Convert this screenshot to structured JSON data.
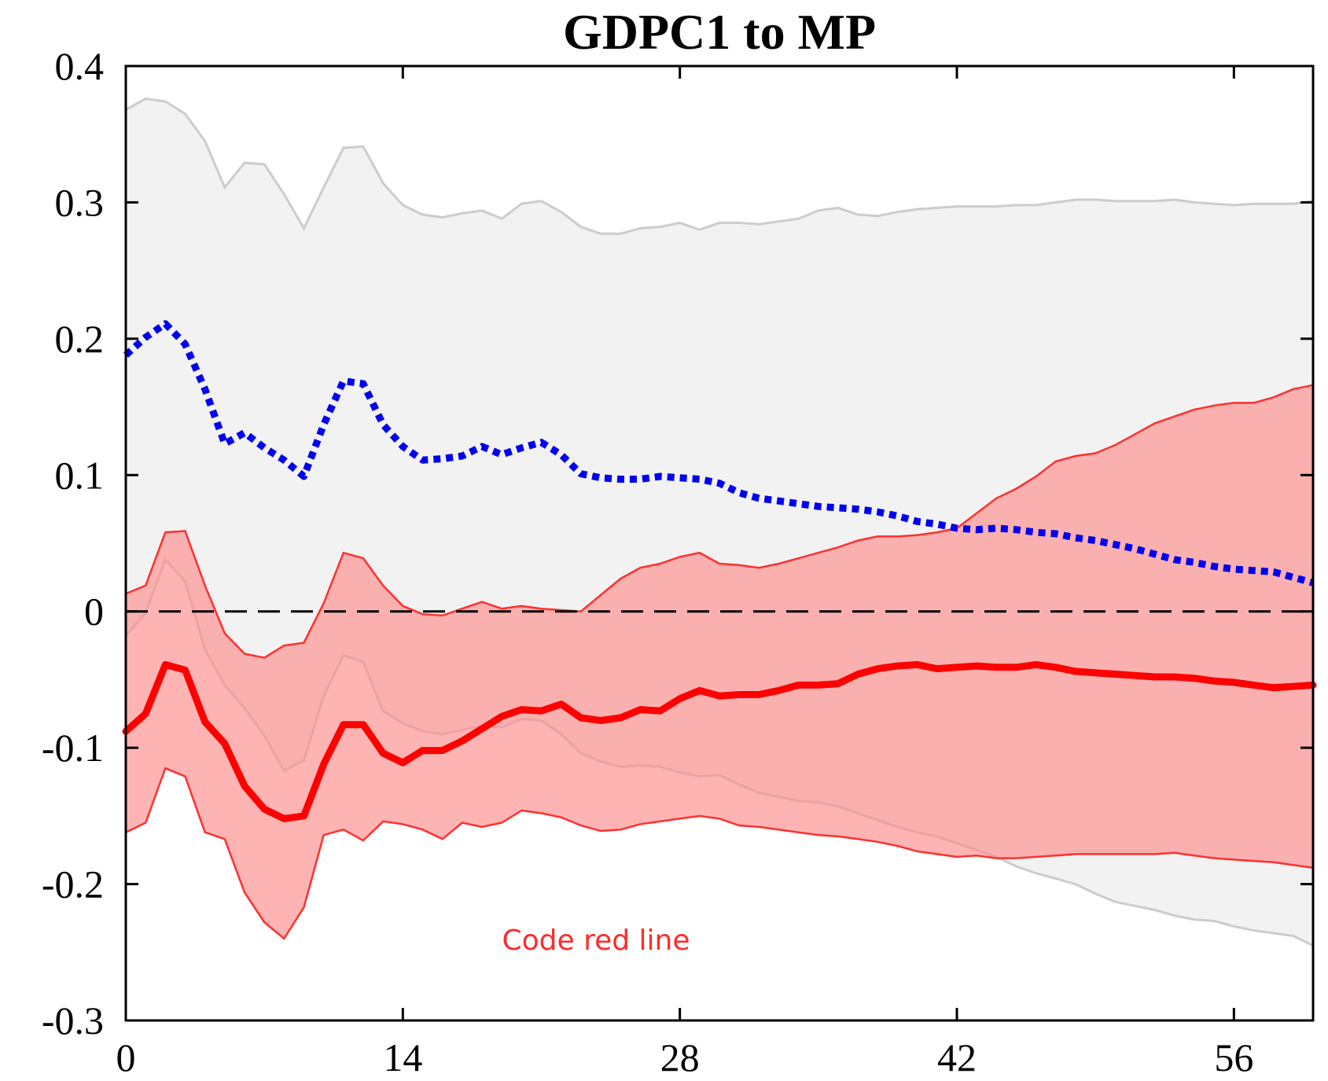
{
  "chart_data": {
    "type": "line",
    "title": "GDPC1 to MP",
    "xlabel": "",
    "ylabel": "",
    "xlim": [
      0,
      60
    ],
    "ylim": [
      -0.3,
      0.4
    ],
    "x_ticks": [
      0,
      14,
      28,
      42,
      56
    ],
    "x_tick_labels": [
      "0",
      "14",
      "28",
      "42",
      "56"
    ],
    "y_ticks": [
      0.4,
      0.3,
      0.2,
      0.1,
      0,
      -0.1,
      -0.2,
      -0.3
    ],
    "y_tick_labels": [
      "0.4",
      "0.3",
      "0.2",
      "0.1",
      "0",
      "-0.1",
      "-0.2",
      "-0.3"
    ],
    "annotation": "Code red line",
    "zero_line": true,
    "x": [
      0,
      1,
      2,
      3,
      4,
      5,
      6,
      7,
      8,
      9,
      10,
      11,
      12,
      13,
      14,
      15,
      16,
      17,
      18,
      19,
      20,
      21,
      22,
      23,
      24,
      25,
      26,
      27,
      28,
      29,
      30,
      31,
      32,
      33,
      34,
      35,
      36,
      37,
      38,
      39,
      40,
      41,
      42,
      43,
      44,
      45,
      46,
      47,
      48,
      49,
      50,
      51,
      52,
      53,
      54,
      55,
      56,
      57,
      58,
      59,
      60
    ],
    "colors": {
      "gray_band_fill": "#f2f2f2",
      "gray_band_edge": "#cccccc",
      "red_band_fill": "#ff8c8c",
      "red_band_edge": "#ff3030",
      "red_line": "#ff0000",
      "blue_line": "#0000ee",
      "zero_line": "#000000"
    },
    "gray_band_upper": [
      0.368,
      0.376,
      0.374,
      0.365,
      0.345,
      0.311,
      0.329,
      0.328,
      0.306,
      0.281,
      0.311,
      0.34,
      0.341,
      0.314,
      0.298,
      0.291,
      0.289,
      0.292,
      0.294,
      0.288,
      0.299,
      0.301,
      0.293,
      0.282,
      0.277,
      0.277,
      0.281,
      0.282,
      0.285,
      0.28,
      0.285,
      0.285,
      0.284,
      0.286,
      0.288,
      0.294,
      0.296,
      0.291,
      0.29,
      0.293,
      0.295,
      0.296,
      0.297,
      0.297,
      0.297,
      0.298,
      0.298,
      0.3,
      0.302,
      0.302,
      0.301,
      0.301,
      0.301,
      0.302,
      0.3,
      0.299,
      0.298,
      0.299,
      0.299,
      0.299,
      0.301
    ],
    "gray_band_lower": [
      -0.018,
      -0.001,
      0.038,
      0.022,
      -0.028,
      -0.054,
      -0.071,
      -0.091,
      -0.117,
      -0.109,
      -0.062,
      -0.032,
      -0.037,
      -0.073,
      -0.082,
      -0.088,
      -0.09,
      -0.087,
      -0.084,
      -0.085,
      -0.079,
      -0.08,
      -0.09,
      -0.104,
      -0.11,
      -0.114,
      -0.113,
      -0.114,
      -0.118,
      -0.121,
      -0.12,
      -0.127,
      -0.133,
      -0.136,
      -0.139,
      -0.14,
      -0.143,
      -0.148,
      -0.153,
      -0.158,
      -0.162,
      -0.165,
      -0.17,
      -0.175,
      -0.18,
      -0.187,
      -0.192,
      -0.196,
      -0.2,
      -0.207,
      -0.213,
      -0.216,
      -0.219,
      -0.223,
      -0.226,
      -0.227,
      -0.231,
      -0.234,
      -0.236,
      -0.238,
      -0.245
    ],
    "red_band_upper": [
      0.013,
      0.019,
      0.058,
      0.059,
      0.019,
      -0.016,
      -0.031,
      -0.034,
      -0.025,
      -0.023,
      0.006,
      0.043,
      0.039,
      0.019,
      0.004,
      -0.002,
      -0.003,
      0.002,
      0.007,
      0.002,
      0.004,
      0.002,
      0.001,
      0.0,
      0.012,
      0.024,
      0.032,
      0.035,
      0.04,
      0.043,
      0.035,
      0.034,
      0.032,
      0.035,
      0.039,
      0.043,
      0.047,
      0.052,
      0.055,
      0.055,
      0.056,
      0.058,
      0.061,
      0.072,
      0.083,
      0.09,
      0.099,
      0.11,
      0.114,
      0.116,
      0.122,
      0.13,
      0.138,
      0.143,
      0.148,
      0.151,
      0.153,
      0.153,
      0.157,
      0.163,
      0.166
    ],
    "red_band_lower": [
      -0.162,
      -0.155,
      -0.115,
      -0.121,
      -0.162,
      -0.167,
      -0.206,
      -0.228,
      -0.24,
      -0.217,
      -0.164,
      -0.16,
      -0.168,
      -0.154,
      -0.156,
      -0.16,
      -0.167,
      -0.155,
      -0.158,
      -0.155,
      -0.146,
      -0.148,
      -0.151,
      -0.157,
      -0.161,
      -0.16,
      -0.156,
      -0.154,
      -0.152,
      -0.15,
      -0.152,
      -0.157,
      -0.158,
      -0.16,
      -0.162,
      -0.164,
      -0.165,
      -0.167,
      -0.169,
      -0.172,
      -0.176,
      -0.178,
      -0.18,
      -0.179,
      -0.181,
      -0.181,
      -0.18,
      -0.179,
      -0.178,
      -0.178,
      -0.178,
      -0.178,
      -0.178,
      -0.177,
      -0.179,
      -0.181,
      -0.182,
      -0.183,
      -0.184,
      -0.186,
      -0.188
    ],
    "series": [
      {
        "values": [
          -0.088,
          -0.075,
          -0.039,
          -0.043,
          -0.081,
          -0.097,
          -0.128,
          -0.145,
          -0.152,
          -0.15,
          -0.112,
          -0.083,
          -0.083,
          -0.104,
          -0.111,
          -0.102,
          -0.102,
          -0.095,
          -0.086,
          -0.077,
          -0.072,
          -0.073,
          -0.068,
          -0.078,
          -0.08,
          -0.078,
          -0.072,
          -0.073,
          -0.064,
          -0.058,
          -0.062,
          -0.061,
          -0.061,
          -0.058,
          -0.054,
          -0.054,
          -0.053,
          -0.046,
          -0.042,
          -0.04,
          -0.039,
          -0.042,
          -0.041,
          -0.04,
          -0.041,
          -0.041,
          -0.039,
          -0.041,
          -0.044,
          -0.045,
          -0.046,
          -0.047,
          -0.048,
          -0.048,
          -0.049,
          -0.051,
          -0.052,
          -0.054,
          -0.056,
          -0.055,
          -0.054
        ],
        "style": "solid",
        "color": "#ff0000"
      },
      {
        "values": [
          0.188,
          0.201,
          0.211,
          0.196,
          0.163,
          0.123,
          0.131,
          0.12,
          0.111,
          0.099,
          0.137,
          0.169,
          0.167,
          0.137,
          0.121,
          0.111,
          0.112,
          0.114,
          0.121,
          0.115,
          0.12,
          0.124,
          0.115,
          0.101,
          0.098,
          0.097,
          0.097,
          0.099,
          0.098,
          0.097,
          0.094,
          0.087,
          0.083,
          0.081,
          0.079,
          0.077,
          0.076,
          0.075,
          0.073,
          0.07,
          0.066,
          0.064,
          0.061,
          0.06,
          0.061,
          0.06,
          0.058,
          0.057,
          0.054,
          0.052,
          0.049,
          0.046,
          0.042,
          0.038,
          0.036,
          0.033,
          0.031,
          0.03,
          0.029,
          0.025,
          0.021
        ],
        "style": "dotted",
        "color": "#0000ee"
      }
    ]
  }
}
